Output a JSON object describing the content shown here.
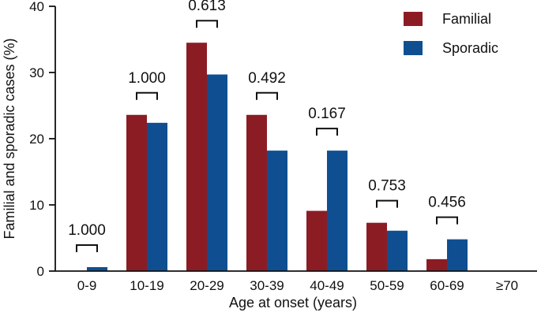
{
  "chart_data": {
    "type": "bar",
    "title": "",
    "xlabel": "Age at onset (years)",
    "ylabel": "Familial and sporadic cases (%)",
    "ylim": [
      0,
      40
    ],
    "yticks": [
      0,
      10,
      20,
      30,
      40
    ],
    "categories": [
      "0-9",
      "10-19",
      "20-29",
      "30-39",
      "40-49",
      "50-59",
      "60-69",
      "≥70"
    ],
    "series": [
      {
        "name": "Familial",
        "color": "#8c1c24",
        "values": [
          0,
          23.6,
          34.5,
          23.6,
          9.1,
          7.3,
          1.8,
          0
        ]
      },
      {
        "name": "Sporadic",
        "color": "#0f4f91",
        "values": [
          0.6,
          22.4,
          29.7,
          18.2,
          18.2,
          6.1,
          4.8,
          0
        ]
      }
    ],
    "p_values": [
      "1.000",
      "1.000",
      "0.613",
      "0.492",
      "0.167",
      "0.753",
      "0.456",
      null
    ],
    "legend_position": "top-right",
    "grid": false
  }
}
